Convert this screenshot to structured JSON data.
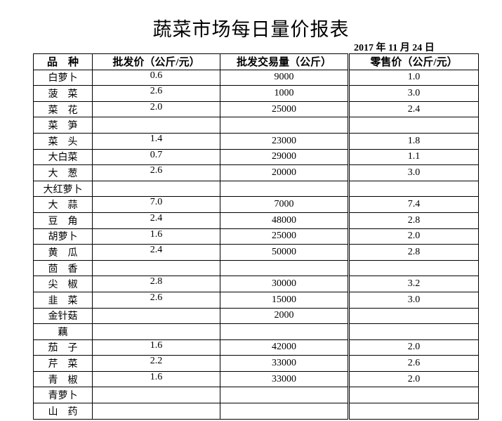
{
  "title": "蔬菜市场每日量价报表",
  "date": "2017 年 11 月 24 日",
  "headers": [
    "品　种",
    "批发价（公斤/元）",
    "批发交易量（公斤）",
    "零售价（公斤/元）"
  ],
  "rows": [
    [
      "白萝卜",
      "0.6",
      "9000",
      "1.0"
    ],
    [
      "菠　菜",
      "2.6",
      "1000",
      "3.0"
    ],
    [
      "菜　花",
      "2.0",
      "25000",
      "2.4"
    ],
    [
      "菜　笋",
      "",
      "",
      ""
    ],
    [
      "菜　头",
      "1.4",
      "23000",
      "1.8"
    ],
    [
      "大白菜",
      "0.7",
      "29000",
      "1.1"
    ],
    [
      "大　葱",
      "2.6",
      "20000",
      "3.0"
    ],
    [
      "大红萝卜",
      "",
      "",
      ""
    ],
    [
      "大　蒜",
      "7.0",
      "7000",
      "7.4"
    ],
    [
      "豆　角",
      "2.4",
      "48000",
      "2.8"
    ],
    [
      "胡萝卜",
      "1.6",
      "25000",
      "2.0"
    ],
    [
      "黄　瓜",
      "2.4",
      "50000",
      "2.8"
    ],
    [
      "茴　香",
      "",
      "",
      ""
    ],
    [
      "尖　椒",
      "2.8",
      "30000",
      "3.2"
    ],
    [
      "韭　菜",
      "2.6",
      "15000",
      "3.0"
    ],
    [
      "金针菇",
      "",
      "2000",
      ""
    ],
    [
      "藕",
      "",
      "",
      ""
    ],
    [
      "茄　子",
      "1.6",
      "42000",
      "2.0"
    ],
    [
      "芹　菜",
      "2.2",
      "33000",
      "2.6"
    ],
    [
      "青　椒",
      "1.6",
      "33000",
      "2.0"
    ],
    [
      "青萝卜",
      "",
      "",
      ""
    ],
    [
      "山　药",
      "",
      "",
      ""
    ]
  ]
}
